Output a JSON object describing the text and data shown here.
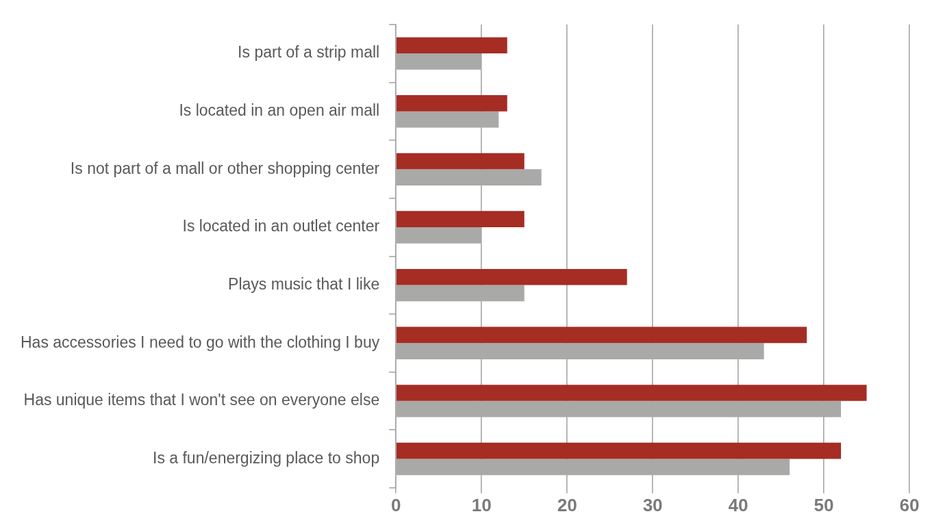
{
  "chart_data": {
    "type": "bar",
    "orientation": "horizontal",
    "categories": [
      "Is part of a strip mall",
      "Is located in an open air mall",
      "Is not part of a mall or other shopping center",
      "Is located in an outlet center",
      "Plays music that I like",
      "Has accessories I need to go with the clothing I buy",
      "Has unique items that I won't see on everyone else",
      "Is a fun/energizing place to shop"
    ],
    "series": [
      {
        "color": "#a52d23",
        "values": [
          13,
          13,
          15,
          15,
          27,
          48,
          55,
          52
        ]
      },
      {
        "color": "#a9a9a8",
        "values": [
          10,
          12,
          17,
          10,
          15,
          43,
          52,
          46
        ]
      }
    ],
    "xlim": [
      0,
      60
    ],
    "xticks": [
      0,
      10,
      20,
      30,
      40,
      50,
      60
    ],
    "grid": "x",
    "legend": false
  }
}
